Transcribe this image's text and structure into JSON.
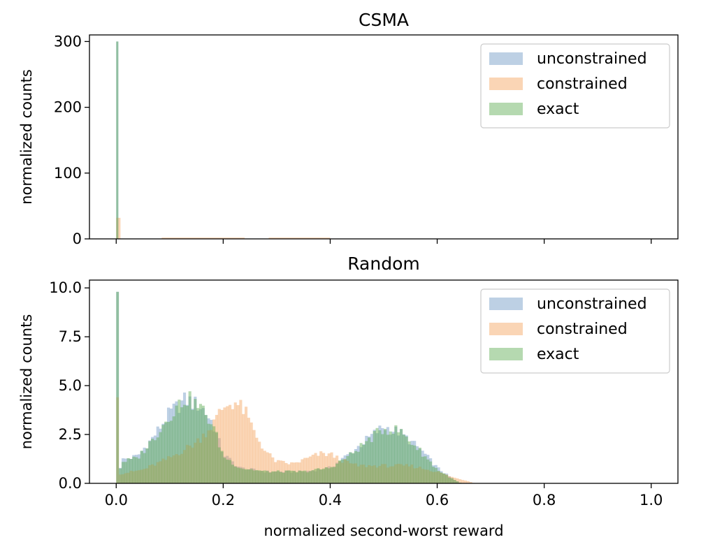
{
  "chart_data": [
    {
      "type": "histogram",
      "title": "CSMA",
      "xlabel": "",
      "ylabel": "normalized counts",
      "xlim": [
        -0.05,
        1.05
      ],
      "ylim": [
        0,
        310
      ],
      "yticks": [
        0,
        100,
        200,
        300
      ],
      "ytick_labels": [
        "0",
        "100",
        "200",
        "300"
      ],
      "xticks": [
        0.0,
        0.2,
        0.4,
        0.6,
        0.8,
        1.0
      ],
      "show_xtick_labels": false,
      "legend_position": "top-right",
      "series": [
        {
          "name": "unconstrained",
          "color": "#6d97c4",
          "bins": [
            {
              "x0": 0.0,
              "x1": 0.004,
              "value": 300
            }
          ]
        },
        {
          "name": "constrained",
          "color": "#f5a25b",
          "bins": [
            {
              "x0": 0.0,
              "x1": 0.008,
              "value": 32
            },
            {
              "x0": 0.085,
              "x1": 0.24,
              "value": 2
            },
            {
              "x0": 0.285,
              "x1": 0.4,
              "value": 2
            }
          ]
        },
        {
          "name": "exact",
          "color": "#5cab50",
          "bins": [
            {
              "x0": 0.0,
              "x1": 0.004,
              "value": 300
            }
          ]
        }
      ]
    },
    {
      "type": "histogram",
      "title": "Random",
      "xlabel": "normalized second-worst reward",
      "ylabel": "normalized counts",
      "xlim": [
        -0.05,
        1.05
      ],
      "ylim": [
        0,
        10.4
      ],
      "yticks": [
        0,
        2.5,
        5.0,
        7.5,
        10.0
      ],
      "ytick_labels": [
        "0.0",
        "2.5",
        "5.0",
        "7.5",
        "10.0"
      ],
      "xticks": [
        0.0,
        0.2,
        0.4,
        0.6,
        0.8,
        1.0
      ],
      "xtick_labels": [
        "0.0",
        "0.2",
        "0.4",
        "0.6",
        "0.8",
        "1.0"
      ],
      "show_xtick_labels": true,
      "legend_position": "top-right",
      "bin_width": 0.005,
      "series": [
        {
          "name": "unconstrained",
          "color": "#6d97c4",
          "spikes": [
            {
              "x": 0.0,
              "value": 9.8
            }
          ],
          "profile": [
            [
              0.005,
              0.5
            ],
            [
              0.01,
              1.2
            ],
            [
              0.04,
              1.4
            ],
            [
              0.07,
              2.4
            ],
            [
              0.1,
              3.6
            ],
            [
              0.13,
              4.3
            ],
            [
              0.16,
              3.9
            ],
            [
              0.18,
              3.1
            ],
            [
              0.2,
              1.5
            ],
            [
              0.23,
              0.8
            ],
            [
              0.28,
              0.6
            ],
            [
              0.35,
              0.6
            ],
            [
              0.4,
              0.8
            ],
            [
              0.44,
              1.6
            ],
            [
              0.48,
              2.5
            ],
            [
              0.5,
              2.9
            ],
            [
              0.53,
              2.6
            ],
            [
              0.57,
              1.7
            ],
            [
              0.6,
              0.8
            ],
            [
              0.63,
              0.2
            ],
            [
              0.645,
              0.0
            ]
          ]
        },
        {
          "name": "constrained",
          "color": "#f5a25b",
          "spikes": [
            {
              "x": 0.0,
              "value": 4.4
            }
          ],
          "profile": [
            [
              0.005,
              0.5
            ],
            [
              0.01,
              0.5
            ],
            [
              0.05,
              0.7
            ],
            [
              0.1,
              1.3
            ],
            [
              0.15,
              2.1
            ],
            [
              0.18,
              3.0
            ],
            [
              0.2,
              3.9
            ],
            [
              0.22,
              4.2
            ],
            [
              0.24,
              3.7
            ],
            [
              0.26,
              2.5
            ],
            [
              0.28,
              1.6
            ],
            [
              0.3,
              1.1
            ],
            [
              0.33,
              1.0
            ],
            [
              0.36,
              1.3
            ],
            [
              0.38,
              1.5
            ],
            [
              0.4,
              1.5
            ],
            [
              0.42,
              1.2
            ],
            [
              0.45,
              0.9
            ],
            [
              0.5,
              0.9
            ],
            [
              0.55,
              0.9
            ],
            [
              0.6,
              0.6
            ],
            [
              0.63,
              0.3
            ],
            [
              0.66,
              0.1
            ],
            [
              0.67,
              0.0
            ]
          ]
        },
        {
          "name": "exact",
          "color": "#5cab50",
          "spikes": [
            {
              "x": 0.0,
              "value": 9.8
            }
          ],
          "profile": [
            [
              0.005,
              0.5
            ],
            [
              0.01,
              1.1
            ],
            [
              0.04,
              1.3
            ],
            [
              0.07,
              2.3
            ],
            [
              0.1,
              3.5
            ],
            [
              0.13,
              4.4
            ],
            [
              0.16,
              3.8
            ],
            [
              0.18,
              3.0
            ],
            [
              0.2,
              1.4
            ],
            [
              0.23,
              0.8
            ],
            [
              0.28,
              0.6
            ],
            [
              0.35,
              0.6
            ],
            [
              0.4,
              0.8
            ],
            [
              0.44,
              1.5
            ],
            [
              0.48,
              2.4
            ],
            [
              0.5,
              2.8
            ],
            [
              0.53,
              2.7
            ],
            [
              0.57,
              1.6
            ],
            [
              0.6,
              0.7
            ],
            [
              0.63,
              0.2
            ],
            [
              0.645,
              0.0
            ]
          ]
        }
      ]
    }
  ],
  "legend": {
    "alpha": 0.45
  }
}
